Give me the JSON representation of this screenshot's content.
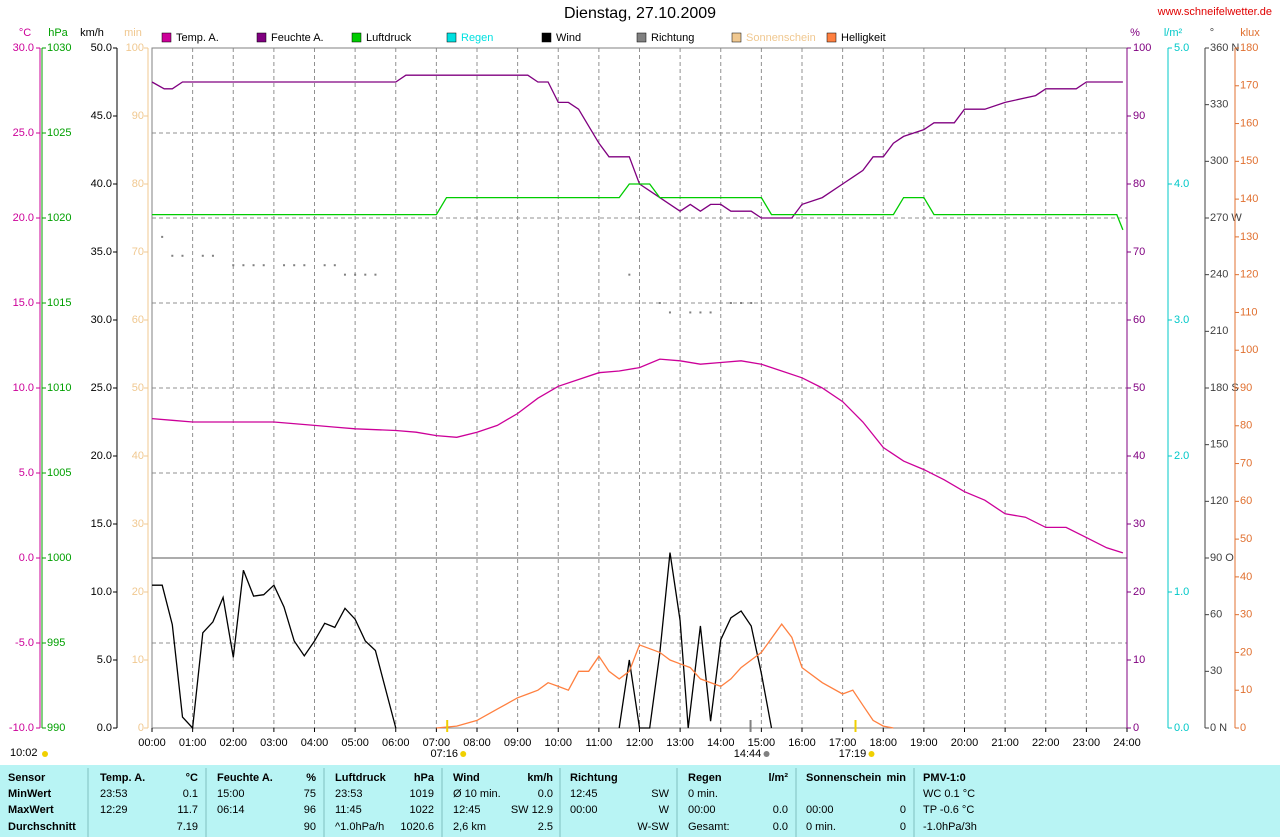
{
  "chart_data": {
    "type": "line",
    "title": "Dienstag, 27.10.2009",
    "source": "www.schneifelwetter.de",
    "time_label": "10:02",
    "grid": true,
    "xlim": [
      0,
      24
    ],
    "xticks": [
      {
        "value": 0,
        "label": "00:00"
      },
      {
        "value": 1,
        "label": "01:00"
      },
      {
        "value": 2,
        "label": "02:00"
      },
      {
        "value": 3,
        "label": "03:00"
      },
      {
        "value": 4,
        "label": "04:00"
      },
      {
        "value": 5,
        "label": "05:00"
      },
      {
        "value": 6,
        "label": "06:00"
      },
      {
        "value": 7,
        "label": "07:00"
      },
      {
        "value": 8,
        "label": "08:00"
      },
      {
        "value": 9,
        "label": "09:00"
      },
      {
        "value": 10,
        "label": "10:00"
      },
      {
        "value": 11,
        "label": "11:00"
      },
      {
        "value": 12,
        "label": "12:00"
      },
      {
        "value": 13,
        "label": "13:00"
      },
      {
        "value": 14,
        "label": "14:00"
      },
      {
        "value": 15,
        "label": "15:00"
      },
      {
        "value": 16,
        "label": "16:00"
      },
      {
        "value": 17,
        "label": "17:00"
      },
      {
        "value": 18,
        "label": "18:00"
      },
      {
        "value": 19,
        "label": "19:00"
      },
      {
        "value": 20,
        "label": "20:00"
      },
      {
        "value": 21,
        "label": "21:00"
      },
      {
        "value": 22,
        "label": "22:00"
      },
      {
        "value": 23,
        "label": "23:00"
      },
      {
        "value": 24,
        "label": "24:00"
      }
    ],
    "axes": [
      {
        "label": "°C",
        "color": "#cc0099",
        "lim": [
          -10,
          30
        ],
        "ticks": [
          {
            "value": -10,
            "label": "-10.0"
          },
          {
            "value": -5,
            "label": "-5.0"
          },
          {
            "value": 0,
            "label": "0.0"
          },
          {
            "value": 5,
            "label": "5.0"
          },
          {
            "value": 10,
            "label": "10.0"
          },
          {
            "value": 15,
            "label": "15.0"
          },
          {
            "value": 20,
            "label": "20.0"
          },
          {
            "value": 25,
            "label": "25.0"
          },
          {
            "value": 30,
            "label": "30.0"
          }
        ]
      },
      {
        "label": "hPa",
        "color": "#00a000",
        "lim": [
          990,
          1030
        ],
        "ticks": [
          990,
          995,
          1000,
          1005,
          1010,
          1015,
          1020,
          1025,
          1030
        ]
      },
      {
        "label": "km/h",
        "color": "#000000",
        "lim": [
          0,
          50
        ],
        "ticks": [
          {
            "value": 0,
            "label": "0.0"
          },
          {
            "value": 5,
            "label": "5.0"
          },
          {
            "value": 10,
            "label": "10.0"
          },
          {
            "value": 15,
            "label": "15.0"
          },
          {
            "value": 20,
            "label": "20.0"
          },
          {
            "value": 25,
            "label": "25.0"
          },
          {
            "value": 30,
            "label": "30.0"
          },
          {
            "value": 35,
            "label": "35.0"
          },
          {
            "value": 40,
            "label": "40.0"
          },
          {
            "value": 45,
            "label": "45.0"
          },
          {
            "value": 50,
            "label": "50.0"
          }
        ]
      },
      {
        "label": "min",
        "color": "#f0c890",
        "lim": [
          0,
          100
        ],
        "ticks": [
          0,
          10,
          20,
          30,
          40,
          50,
          60,
          70,
          80,
          90,
          100
        ]
      },
      {
        "label": "%",
        "color": "#800080",
        "lim": [
          0,
          100
        ],
        "ticks": [
          0,
          10,
          20,
          30,
          40,
          50,
          60,
          70,
          80,
          90,
          100
        ]
      },
      {
        "label": "l/m²",
        "color": "#00c8c8",
        "lim": [
          0,
          5
        ],
        "ticks": [
          {
            "value": 0,
            "label": "0.0"
          },
          {
            "value": 1,
            "label": "1.0"
          },
          {
            "value": 2,
            "label": "2.0"
          },
          {
            "value": 3,
            "label": "3.0"
          },
          {
            "value": 4,
            "label": "4.0"
          },
          {
            "value": 5,
            "label": "5.0"
          }
        ]
      },
      {
        "label": "°",
        "color": "#404040",
        "lim": [
          0,
          360
        ],
        "ticks": [
          {
            "value": 0,
            "label": "0 N"
          },
          30,
          60,
          {
            "value": 90,
            "label": "90 O"
          },
          120,
          150,
          {
            "value": 180,
            "label": "180 S"
          },
          210,
          240,
          {
            "value": 270,
            "label": "270 W"
          },
          300,
          330,
          {
            "value": 360,
            "label": "360 N"
          }
        ]
      },
      {
        "label": "klux",
        "color": "#e07030",
        "lim": [
          0,
          180
        ],
        "ticks": [
          0,
          10,
          20,
          30,
          40,
          50,
          60,
          70,
          80,
          90,
          100,
          110,
          120,
          130,
          140,
          150,
          160,
          170,
          180
        ]
      }
    ],
    "series": [
      {
        "name": "Temp. A.",
        "color": "#cc0099",
        "axis": 0,
        "x": [
          0,
          0.5,
          1,
          2,
          3,
          4,
          4.5,
          5,
          6,
          6.5,
          7,
          7.5,
          8,
          8.5,
          9,
          9.5,
          10,
          10.5,
          11,
          11.5,
          12,
          12.5,
          13,
          13.5,
          14,
          14.5,
          15,
          15.5,
          16,
          16.5,
          17,
          17.5,
          18,
          18.5,
          19,
          19.5,
          20,
          20.5,
          21,
          21.5,
          22,
          22.5,
          23,
          23.5,
          23.9
        ],
        "values": [
          8.2,
          8.1,
          8.0,
          8.0,
          8.0,
          7.8,
          7.7,
          7.6,
          7.5,
          7.4,
          7.2,
          7.1,
          7.4,
          7.8,
          8.5,
          9.4,
          10.1,
          10.5,
          10.9,
          11.0,
          11.2,
          11.7,
          11.6,
          11.4,
          11.5,
          11.6,
          11.4,
          11.0,
          10.6,
          10.0,
          9.2,
          8.0,
          6.5,
          5.7,
          5.2,
          4.6,
          3.9,
          3.4,
          2.6,
          2.4,
          1.8,
          1.8,
          1.2,
          0.6,
          0.3
        ]
      },
      {
        "name": "Feuchte A.",
        "color": "#800080",
        "axis": 4,
        "x": [
          0,
          0.3,
          0.5,
          0.75,
          6,
          6.25,
          9.25,
          9.5,
          9.75,
          10,
          10.25,
          10.5,
          11,
          11.25,
          11.5,
          11.75,
          12,
          12.25,
          12.75,
          13,
          13.25,
          13.5,
          13.75,
          14,
          14.25,
          14.5,
          14.75,
          15,
          15.25,
          15.5,
          15.75,
          16,
          16.5,
          17,
          17.25,
          17.5,
          17.75,
          18,
          18.25,
          18.5,
          19,
          19.25,
          19.75,
          20,
          20.5,
          21,
          21.75,
          22,
          22.75,
          23,
          23.5,
          23.9
        ],
        "values": [
          95,
          94,
          94,
          95,
          95,
          96,
          96,
          95,
          95,
          92,
          92,
          91,
          86,
          84,
          84,
          84,
          80,
          79,
          77,
          76,
          77,
          76,
          77,
          77,
          76,
          76,
          76,
          75,
          75,
          75,
          75,
          77,
          78,
          80,
          81,
          82,
          84,
          84,
          86,
          87,
          88,
          89,
          89,
          91,
          91,
          92,
          93,
          94,
          94,
          95,
          95,
          95
        ]
      },
      {
        "name": "Luftdruck",
        "color": "#00cc00",
        "axis": 1,
        "x": [
          0,
          7,
          7.25,
          11.5,
          11.75,
          12.25,
          12.5,
          15,
          15.25,
          18.25,
          18.5,
          19,
          19.25,
          23.75,
          23.9
        ],
        "values": [
          1020.2,
          1020.2,
          1021.2,
          1021.2,
          1022,
          1022,
          1021.2,
          1021.2,
          1020.2,
          1020.2,
          1021.2,
          1021.2,
          1020.2,
          1020.2,
          1019.3
        ]
      },
      {
        "name": "Regen",
        "color": "#00e0e0",
        "axis": 5,
        "x": [],
        "values": []
      },
      {
        "name": "Wind",
        "color": "#000000",
        "axis": 2,
        "x": [
          0,
          0.25,
          0.5,
          0.75,
          1,
          1.25,
          1.5,
          1.75,
          2,
          2.25,
          2.5,
          2.75,
          3,
          3.25,
          3.5,
          3.75,
          4,
          4.25,
          4.5,
          4.75,
          5,
          5.25,
          5.5,
          6,
          9,
          11.5,
          11.75,
          12,
          12.25,
          12.5,
          12.75,
          13,
          13.2,
          13.5,
          13.75,
          14,
          14.25,
          14.5,
          14.75,
          15,
          15.25
        ],
        "values": [
          10.5,
          10.5,
          7.6,
          0.8,
          0,
          7.0,
          7.8,
          9.6,
          5.2,
          11.6,
          9.7,
          9.8,
          10.5,
          8.9,
          6.4,
          5.3,
          6.4,
          7.7,
          7.4,
          8.8,
          8.0,
          6.4,
          5.7,
          0,
          null,
          0,
          5,
          0,
          0,
          5.5,
          12.9,
          7.9,
          0,
          7.5,
          0.5,
          6.5,
          8.1,
          8.6,
          7.5,
          4,
          0
        ]
      },
      {
        "name": "Richtung",
        "color": "#808080",
        "axis": 6,
        "style": "dots",
        "x": [
          0.25,
          0.5,
          0.75,
          1.25,
          1.5,
          2,
          2.25,
          2.5,
          2.75,
          3.25,
          3.5,
          3.75,
          4.25,
          4.5,
          4.75,
          5,
          5.25,
          5.5,
          11.75,
          12.5,
          12.75,
          13.25,
          13.5,
          13.75,
          14.25,
          14.5,
          14.75
        ],
        "values": [
          260,
          250,
          250,
          250,
          250,
          245,
          245,
          245,
          245,
          245,
          245,
          245,
          245,
          245,
          240,
          240,
          240,
          240,
          240,
          225,
          220,
          220,
          220,
          220,
          225,
          225,
          225
        ]
      },
      {
        "name": "Sonnenschein",
        "color": "#f0c890",
        "axis": 3,
        "x": [],
        "values": []
      },
      {
        "name": "Helligkeit",
        "color": "#ff8040",
        "axis": 7,
        "x": [
          7,
          7.5,
          8,
          8.5,
          9,
          9.25,
          9.5,
          9.75,
          10,
          10.25,
          10.5,
          10.75,
          11,
          11.25,
          11.5,
          11.75,
          12,
          12.25,
          12.5,
          12.75,
          13,
          13.25,
          13.5,
          14,
          14.25,
          14.5,
          14.75,
          15,
          15.5,
          15.75,
          16,
          16.5,
          17,
          17.25,
          17.5,
          17.75,
          18,
          18.25
        ],
        "values": [
          0,
          0.5,
          2,
          5,
          8,
          9,
          10,
          12,
          11,
          10,
          15,
          15,
          19,
          15,
          13,
          15,
          22,
          21,
          20,
          18,
          17,
          16,
          13,
          11,
          13,
          16,
          18,
          20,
          27.5,
          24,
          16,
          12,
          9,
          10,
          6,
          2,
          0.5,
          0
        ]
      }
    ],
    "annotations": [
      {
        "text": "07:16",
        "x": 7.2667,
        "color": "#f0d000"
      },
      {
        "text": "14:44",
        "x": 14.7333,
        "color": "#808080"
      },
      {
        "text": "17:19",
        "x": 17.3167,
        "color": "#f0d000"
      }
    ]
  },
  "table": {
    "groups": [
      {
        "head": [
          "Sensor"
        ],
        "rows": [
          [
            "MinWert"
          ],
          [
            "MaxWert"
          ],
          [
            "Durchschnitt"
          ]
        ]
      },
      {
        "head": [
          "Temp. A.",
          "°C"
        ],
        "rows": [
          [
            "23:53",
            "0.1"
          ],
          [
            "12:29",
            "11.7"
          ],
          [
            null,
            "7.19"
          ]
        ]
      },
      {
        "head": [
          "Feuchte A.",
          "%"
        ],
        "rows": [
          [
            "15:00",
            "75"
          ],
          [
            "06:14",
            "96"
          ],
          [
            null,
            "90"
          ]
        ]
      },
      {
        "head": [
          "Luftdruck",
          "hPa"
        ],
        "rows": [
          [
            "23:53",
            "1019"
          ],
          [
            "11:45",
            "1022"
          ],
          [
            "^1.0hPa/h",
            "1020.6"
          ]
        ]
      },
      {
        "head": [
          "Wind",
          "km/h"
        ],
        "rows": [
          [
            "Ø 10 min.",
            "0.0"
          ],
          [
            "12:45",
            "SW 12.9"
          ],
          [
            "2,6 km",
            "2.5"
          ]
        ]
      },
      {
        "head": [
          "Richtung"
        ],
        "rows": [
          [
            "12:45",
            "SW"
          ],
          [
            "00:00",
            "W"
          ],
          [
            null,
            "W-SW"
          ]
        ]
      },
      {
        "head": [
          "Regen",
          "l/m²"
        ],
        "rows": [
          [
            "0 min.",
            null
          ],
          [
            "00:00",
            "0.0"
          ],
          [
            "Gesamt:",
            "0.0"
          ]
        ]
      },
      {
        "head": [
          "Sonnenschein",
          "min"
        ],
        "rows": [
          [
            null,
            null
          ],
          [
            "00:00",
            "0"
          ],
          [
            "0 min.",
            "0"
          ]
        ]
      },
      {
        "head": [
          "PMV-1:0"
        ],
        "rows": [
          [
            "WC 0.1 °C"
          ],
          [
            "TP -0.6 °C"
          ],
          [
            "-1.0hPa/3h"
          ]
        ]
      }
    ]
  }
}
